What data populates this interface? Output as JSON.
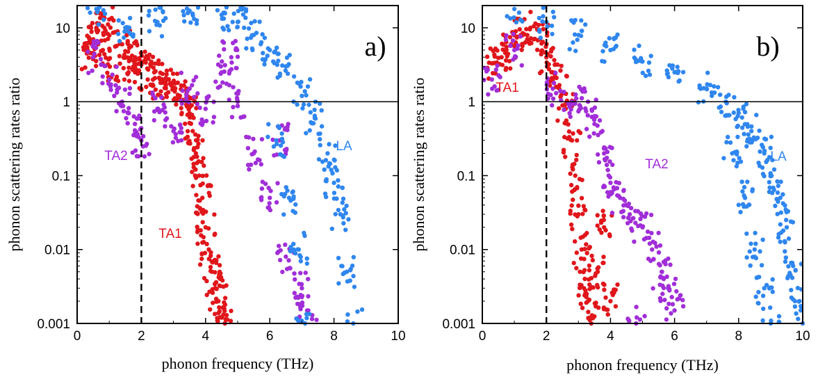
{
  "chart_data": [
    {
      "type": "scatter",
      "panel_label": "a)",
      "xlabel": "phonon frequency (THz)",
      "ylabel": "phonon scattering rates ratio",
      "xlim": [
        0,
        10
      ],
      "ylim": [
        0.001,
        20
      ],
      "yscale": "log",
      "xticks": [
        0,
        2,
        4,
        6,
        8,
        10
      ],
      "xtick_labels": [
        "0",
        "2",
        "4",
        "6",
        "8",
        "10"
      ],
      "yticks": [
        0.001,
        0.01,
        0.1,
        1,
        10
      ],
      "ytick_labels": [
        "0.001",
        "0.01",
        "0.1",
        "1",
        "10"
      ],
      "reference_lines": [
        {
          "orientation": "horizontal",
          "value": 1,
          "style": "solid"
        },
        {
          "orientation": "vertical",
          "value": 2,
          "style": "dashed"
        }
      ],
      "series": [
        {
          "name": "TA1",
          "color": "#e0161b",
          "points": [
            [
              0.3,
              4.5
            ],
            [
              0.5,
              7
            ],
            [
              0.6,
              10
            ],
            [
              0.8,
              5
            ],
            [
              1.0,
              13
            ],
            [
              1.2,
              3
            ],
            [
              1.4,
              6
            ],
            [
              1.6,
              2.5
            ],
            [
              1.8,
              4
            ],
            [
              2.0,
              3.5
            ],
            [
              2.2,
              2
            ],
            [
              2.4,
              2.5
            ],
            [
              2.6,
              1.8
            ],
            [
              2.8,
              2
            ],
            [
              3.0,
              1.5
            ],
            [
              3.2,
              1.2
            ],
            [
              3.4,
              1.0
            ],
            [
              3.5,
              0.7
            ],
            [
              3.6,
              0.4
            ],
            [
              3.7,
              0.2
            ],
            [
              3.8,
              0.1
            ],
            [
              3.9,
              0.05
            ],
            [
              4.0,
              0.02
            ],
            [
              4.1,
              0.01
            ],
            [
              4.2,
              0.005
            ],
            [
              4.3,
              0.003
            ],
            [
              4.4,
              0.002
            ],
            [
              4.5,
              0.0012
            ],
            [
              4.6,
              0.001
            ]
          ]
        },
        {
          "name": "TA2",
          "color": "#a12ed8",
          "points": [
            [
              0.5,
              4
            ],
            [
              1.0,
              2
            ],
            [
              1.4,
              1
            ],
            [
              1.8,
              0.5
            ],
            [
              2.0,
              0.3
            ],
            [
              2.5,
              0.8
            ],
            [
              3.0,
              0.4
            ],
            [
              3.5,
              1.5
            ],
            [
              4.0,
              0.8
            ],
            [
              4.5,
              2.5
            ],
            [
              4.8,
              4
            ],
            [
              5.0,
              1
            ],
            [
              5.5,
              0.2
            ],
            [
              6.0,
              0.05
            ],
            [
              6.3,
              0.3
            ],
            [
              6.5,
              0.008
            ],
            [
              7.0,
              0.003
            ],
            [
              7.2,
              0.0015
            ]
          ]
        },
        {
          "name": "LA",
          "color": "#2f86ee",
          "points": [
            [
              0.6,
              18
            ],
            [
              1.5,
              10
            ],
            [
              2.5,
              12
            ],
            [
              3.5,
              17
            ],
            [
              4.5,
              15
            ],
            [
              5.0,
              12
            ],
            [
              5.5,
              8
            ],
            [
              6.0,
              5
            ],
            [
              6.5,
              3
            ],
            [
              7.0,
              1.2
            ],
            [
              7.4,
              0.6
            ],
            [
              7.8,
              0.2
            ],
            [
              8.0,
              0.08
            ],
            [
              8.2,
              0.03
            ],
            [
              8.4,
              0.005
            ],
            [
              8.6,
              0.001
            ],
            [
              6.2,
              0.3
            ],
            [
              6.6,
              0.05
            ],
            [
              6.9,
              0.01
            ],
            [
              7.1,
              0.001
            ]
          ]
        }
      ]
    },
    {
      "type": "scatter",
      "panel_label": "b)",
      "xlabel": "phonon frequency (THz)",
      "ylabel": "phonon scattering rates ratio",
      "xlim": [
        0,
        10
      ],
      "ylim": [
        0.001,
        20
      ],
      "yscale": "log",
      "xticks": [
        0,
        2,
        4,
        6,
        8,
        10
      ],
      "xtick_labels": [
        "0",
        "2",
        "4",
        "6",
        "8",
        "10"
      ],
      "yticks": [
        0.001,
        0.01,
        0.1,
        1,
        10
      ],
      "ytick_labels": [
        "0.001",
        "0.01",
        "0.1",
        "1",
        "10"
      ],
      "reference_lines": [
        {
          "orientation": "horizontal",
          "value": 1,
          "style": "solid"
        },
        {
          "orientation": "vertical",
          "value": 2,
          "style": "dashed"
        }
      ],
      "series": [
        {
          "name": "TA1",
          "color": "#e0161b",
          "points": [
            [
              0.3,
              3.3
            ],
            [
              0.6,
              4
            ],
            [
              0.9,
              6
            ],
            [
              1.2,
              8
            ],
            [
              1.5,
              10
            ],
            [
              1.8,
              7
            ],
            [
              2.0,
              4
            ],
            [
              2.2,
              2.5
            ],
            [
              2.4,
              1.5
            ],
            [
              2.6,
              0.8
            ],
            [
              2.8,
              0.3
            ],
            [
              2.9,
              0.1
            ],
            [
              3.0,
              0.03
            ],
            [
              3.1,
              0.01
            ],
            [
              3.2,
              0.004
            ],
            [
              3.3,
              0.002
            ],
            [
              3.4,
              0.001
            ],
            [
              3.6,
              0.005
            ],
            [
              3.8,
              0.02
            ],
            [
              4.0,
              0.002
            ]
          ]
        },
        {
          "name": "TA2",
          "color": "#a12ed8",
          "points": [
            [
              0.3,
              2
            ],
            [
              1.0,
              5
            ],
            [
              2.2,
              1.5
            ],
            [
              2.8,
              1
            ],
            [
              3.3,
              1
            ],
            [
              3.5,
              0.5
            ],
            [
              3.8,
              0.2
            ],
            [
              4.0,
              0.08
            ],
            [
              4.3,
              0.05
            ],
            [
              4.6,
              0.03
            ],
            [
              5.0,
              0.02
            ],
            [
              5.3,
              0.01
            ],
            [
              5.6,
              0.005
            ],
            [
              5.8,
              0.003
            ],
            [
              6.0,
              0.0015
            ],
            [
              4.8,
              0.001
            ]
          ]
        },
        {
          "name": "LA",
          "color": "#2f86ee",
          "points": [
            [
              1.0,
              18
            ],
            [
              2.0,
              12
            ],
            [
              3.0,
              8
            ],
            [
              4.0,
              5
            ],
            [
              5.0,
              3.5
            ],
            [
              6.0,
              2.5
            ],
            [
              7.0,
              1.5
            ],
            [
              7.6,
              1.0
            ],
            [
              8.0,
              0.7
            ],
            [
              8.4,
              0.4
            ],
            [
              8.8,
              0.2
            ],
            [
              9.0,
              0.1
            ],
            [
              9.3,
              0.05
            ],
            [
              9.5,
              0.02
            ],
            [
              9.7,
              0.006
            ],
            [
              9.9,
              0.002
            ],
            [
              10.0,
              0.001
            ],
            [
              7.8,
              0.2
            ],
            [
              8.2,
              0.05
            ],
            [
              8.5,
              0.01
            ],
            [
              8.8,
              0.003
            ],
            [
              9.0,
              0.001
            ]
          ]
        }
      ]
    }
  ]
}
